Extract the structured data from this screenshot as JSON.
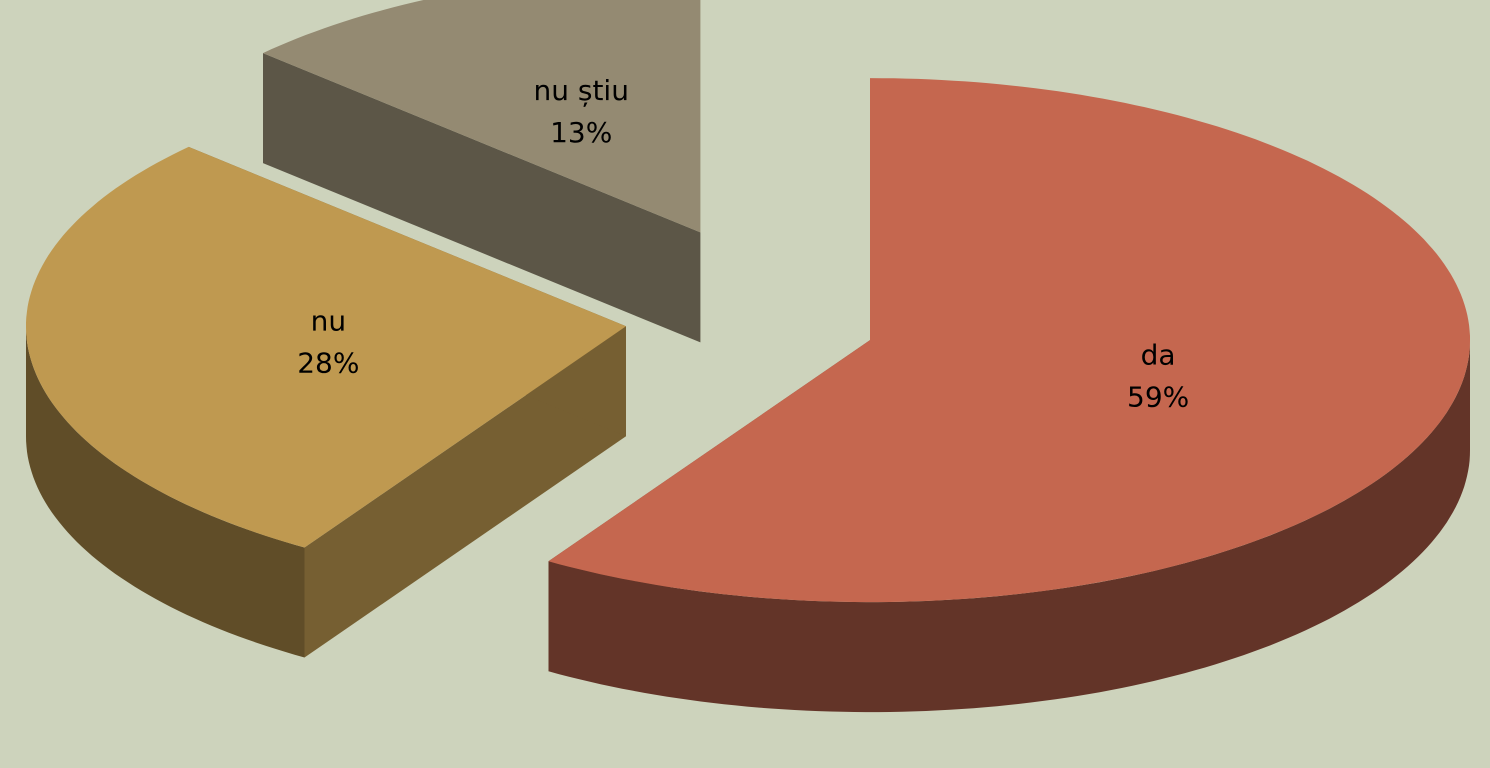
{
  "chart_data": {
    "type": "pie",
    "style": "3d-exploded",
    "categories": [
      "da",
      "nu",
      "nu știu"
    ],
    "values": [
      59,
      28,
      13
    ],
    "value_labels": [
      "59%",
      "28%",
      "13%"
    ],
    "colors": [
      "#c5674f",
      "#bf9950",
      "#948a72"
    ]
  }
}
